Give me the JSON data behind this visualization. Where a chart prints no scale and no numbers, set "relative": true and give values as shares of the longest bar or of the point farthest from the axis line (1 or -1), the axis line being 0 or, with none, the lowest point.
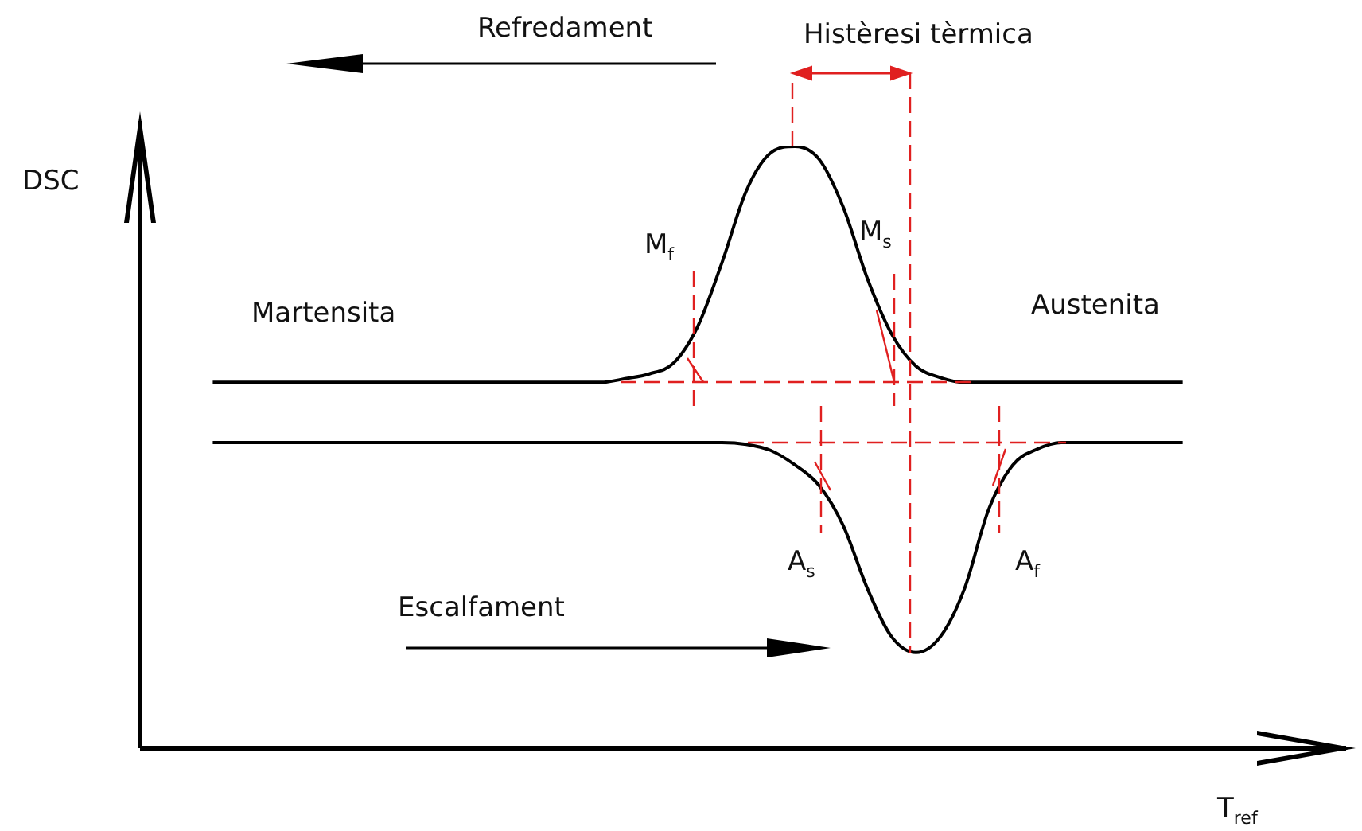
{
  "chart_data": {
    "type": "line",
    "relative": true,
    "xlabel": "T$_{ref}$",
    "ylabel": "DSC",
    "categories": [
      null,
      null,
      null,
      null,
      null,
      null,
      null,
      null,
      null,
      null,
      null,
      null,
      null,
      null,
      null,
      null,
      null,
      null,
      null,
      null,
      null,
      null,
      null,
      null,
      null,
      null,
      null,
      null,
      null,
      null,
      null,
      null,
      null,
      null,
      null,
      null,
      null,
      null,
      null,
      null,
      null,
      null,
      null,
      null,
      null,
      null,
      null,
      null,
      null,
      null,
      null
    ],
    "series": [
      {
        "color": "#000000",
        "values": [
          null,
          null,
          null,
          0.608,
          0.608,
          0.608,
          0.608,
          0.608,
          0.608,
          0.608,
          0.608,
          0.608,
          0.608,
          0.608,
          0.608,
          0.608,
          0.608,
          0.608,
          0.608,
          0.608,
          0.614,
          0.622,
          0.64,
          0.701,
          0.807,
          0.926,
          0.989,
          1,
          0.979,
          0.899,
          0.78,
          0.688,
          0.635,
          0.616,
          0.608,
          0.608,
          0.608,
          0.608,
          0.608,
          0.608,
          0.608,
          0.608,
          0.608,
          0.608,
          null,
          null,
          null,
          null,
          null,
          null,
          null
        ]
      },
      {
        "color": "#000000",
        "values": [
          null,
          null,
          null,
          0.508,
          0.508,
          0.508,
          0.508,
          0.508,
          0.508,
          0.508,
          0.508,
          0.508,
          0.508,
          0.508,
          0.508,
          0.508,
          0.508,
          0.508,
          0.508,
          0.508,
          0.508,
          0.508,
          0.508,
          0.508,
          0.508,
          0.505,
          0.495,
          0.471,
          0.437,
          0.37,
          0.265,
          0.185,
          0.159,
          0.185,
          0.265,
          0.397,
          0.471,
          0.497,
          0.508,
          0.508,
          0.508,
          0.508,
          0.508,
          0.508,
          null,
          null,
          null,
          null,
          null,
          null,
          null
        ]
      }
    ],
    "annotations": [
      "Refredament",
      "Histèresi tèrmica",
      "Martensita",
      "Austenita",
      "M$_{f}$",
      "M$_{s}$",
      "A$_{s}$",
      "A$_{f}$",
      "Escalfament"
    ]
  }
}
